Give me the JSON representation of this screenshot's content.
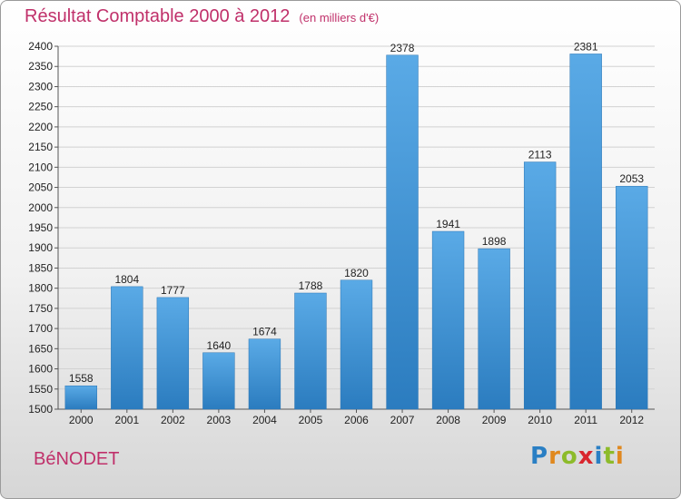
{
  "header": {
    "title": "Résultat Comptable 2000 à 2012",
    "subtitle": "(en milliers d'€)"
  },
  "footer": {
    "place": "BéNODET",
    "logo_letters": [
      "P",
      "r",
      "o",
      "x",
      "i",
      "t",
      "i"
    ],
    "logo_colors": [
      "#2a7fc4",
      "#e0881e",
      "#8dbb2a",
      "#d9262e",
      "#2a7fc4",
      "#8dbb2a",
      "#e0881e"
    ]
  },
  "chart_data": {
    "type": "bar",
    "categories": [
      "2000",
      "2001",
      "2002",
      "2003",
      "2004",
      "2005",
      "2006",
      "2007",
      "2008",
      "2009",
      "2010",
      "2011",
      "2012"
    ],
    "values": [
      1558,
      1804,
      1777,
      1640,
      1674,
      1788,
      1820,
      2378,
      1941,
      1898,
      2113,
      2381,
      2053
    ],
    "title": "Résultat Comptable 2000 à 2012",
    "subtitle": "(en milliers d'€)",
    "ylim": [
      1500,
      2400
    ],
    "ytick_step": 50,
    "grid": true,
    "bar_color_top": "#5aaae6",
    "bar_color_bottom": "#2b7cbf"
  }
}
